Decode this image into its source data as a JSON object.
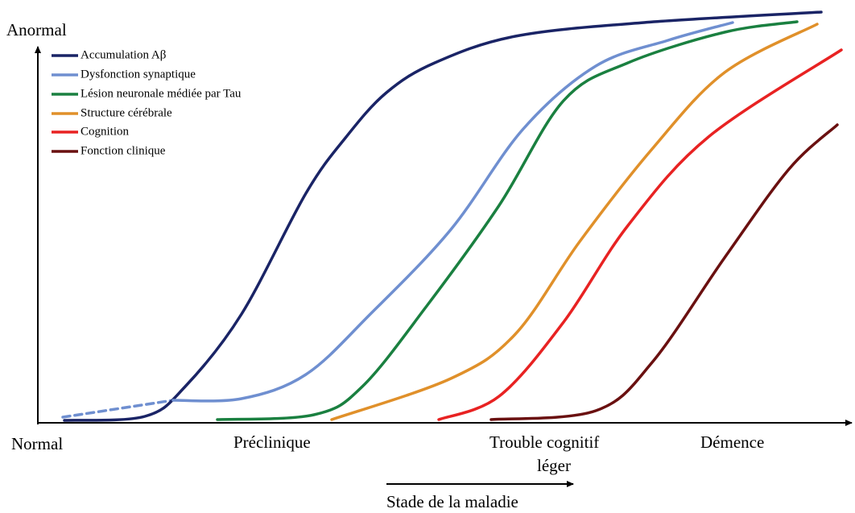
{
  "y_axis_label": "Anormal",
  "legend": [
    "Accumulation Aβ",
    "Dysfonction synaptique",
    "Lésion neuronale médiée par Tau",
    "Structure cérébrale",
    "Cognition",
    "Fonction clinique"
  ],
  "x_labels": [
    "Normal",
    "Préclinique",
    "Trouble cognitif",
    "léger",
    "Démence"
  ],
  "x_axis_title": "Stade de la maladie"
}
